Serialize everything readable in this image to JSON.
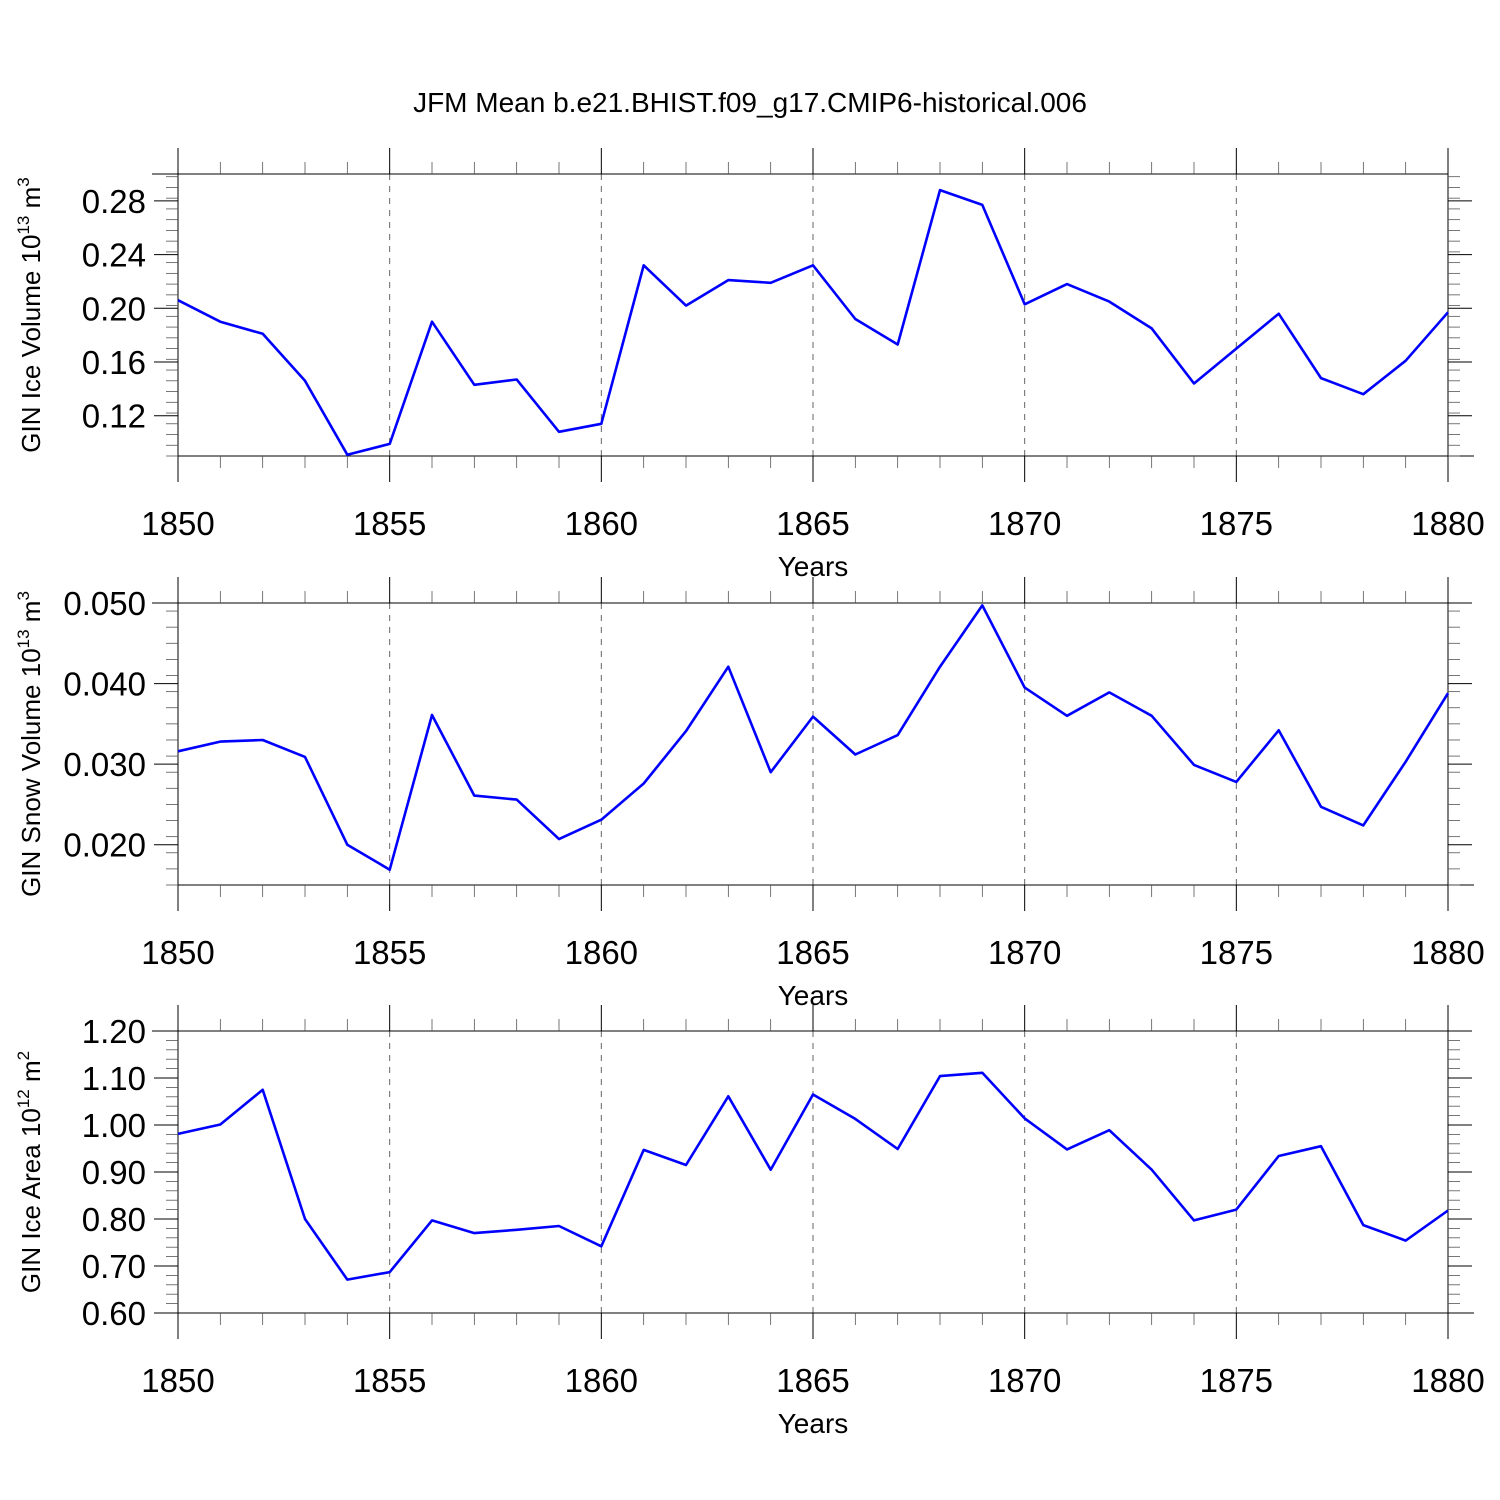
{
  "title": "JFM Mean b.e21.BHIST.f09_g17.CMIP6-historical.006",
  "colors": {
    "series": "#0000ff",
    "axes": "#000000",
    "grid": "#666666"
  },
  "chart_data": [
    {
      "type": "line",
      "ylabel": "GIN Ice Volume 10",
      "ylabel_exp": "13",
      "ylabel_unit": " m",
      "ylabel_unit_exp": "3",
      "xlabel": "Years",
      "xlim": [
        1850,
        1880
      ],
      "ylim": [
        0.09,
        0.3
      ],
      "yticks": [
        0.12,
        0.16,
        0.2,
        0.24,
        0.28
      ],
      "ytick_labels": [
        "0.12",
        "0.16",
        "0.20",
        "0.24",
        "0.28"
      ],
      "xticks": [
        1850,
        1855,
        1860,
        1865,
        1870,
        1875,
        1880
      ],
      "xtick_labels": [
        "1850",
        "1855",
        "1860",
        "1865",
        "1870",
        "1875",
        "1880"
      ],
      "grid": "vertical dashed at major x ticks",
      "x": [
        1850,
        1851,
        1852,
        1853,
        1854,
        1855,
        1856,
        1857,
        1858,
        1859,
        1860,
        1861,
        1862,
        1863,
        1864,
        1865,
        1866,
        1867,
        1868,
        1869,
        1870,
        1871,
        1872,
        1873,
        1874,
        1875,
        1876,
        1877,
        1878,
        1879,
        1880
      ],
      "values": [
        0.206,
        0.19,
        0.181,
        0.146,
        0.091,
        0.099,
        0.19,
        0.143,
        0.147,
        0.108,
        0.114,
        0.232,
        0.202,
        0.221,
        0.219,
        0.232,
        0.192,
        0.173,
        0.288,
        0.277,
        0.203,
        0.218,
        0.205,
        0.185,
        0.144,
        0.17,
        0.196,
        0.148,
        0.136,
        0.161,
        0.197
      ]
    },
    {
      "type": "line",
      "ylabel": "GIN Snow Volume 10",
      "ylabel_exp": "13",
      "ylabel_unit": " m",
      "ylabel_unit_exp": "3",
      "xlabel": "Years",
      "xlim": [
        1850,
        1880
      ],
      "ylim": [
        0.015,
        0.05
      ],
      "yticks": [
        0.02,
        0.03,
        0.04,
        0.05
      ],
      "ytick_labels": [
        "0.020",
        "0.030",
        "0.040",
        "0.050"
      ],
      "xticks": [
        1850,
        1855,
        1860,
        1865,
        1870,
        1875,
        1880
      ],
      "xtick_labels": [
        "1850",
        "1855",
        "1860",
        "1865",
        "1870",
        "1875",
        "1880"
      ],
      "grid": "vertical dashed at major x ticks",
      "x": [
        1850,
        1851,
        1852,
        1853,
        1854,
        1855,
        1856,
        1857,
        1858,
        1859,
        1860,
        1861,
        1862,
        1863,
        1864,
        1865,
        1866,
        1867,
        1868,
        1869,
        1870,
        1871,
        1872,
        1873,
        1874,
        1875,
        1876,
        1877,
        1878,
        1879,
        1880
      ],
      "values": [
        0.0316,
        0.0328,
        0.033,
        0.0309,
        0.02,
        0.0169,
        0.0361,
        0.0261,
        0.0256,
        0.0207,
        0.0231,
        0.0276,
        0.0341,
        0.0421,
        0.029,
        0.0359,
        0.0312,
        0.0336,
        0.0421,
        0.0497,
        0.0395,
        0.036,
        0.0389,
        0.036,
        0.0299,
        0.0278,
        0.0342,
        0.0247,
        0.0224,
        0.0303,
        0.0388
      ]
    },
    {
      "type": "line",
      "ylabel": "GIN Ice Area 10",
      "ylabel_exp": "12",
      "ylabel_unit": " m",
      "ylabel_unit_exp": "2",
      "xlabel": "Years",
      "xlim": [
        1850,
        1880
      ],
      "ylim": [
        0.6,
        1.2
      ],
      "yticks": [
        0.6,
        0.7,
        0.8,
        0.9,
        1.0,
        1.1,
        1.2
      ],
      "ytick_labels": [
        "0.60",
        "0.70",
        "0.80",
        "0.90",
        "1.00",
        "1.10",
        "1.20"
      ],
      "xticks": [
        1850,
        1855,
        1860,
        1865,
        1870,
        1875,
        1880
      ],
      "xtick_labels": [
        "1850",
        "1855",
        "1860",
        "1865",
        "1870",
        "1875",
        "1880"
      ],
      "grid": "vertical dashed at major x ticks",
      "x": [
        1850,
        1851,
        1852,
        1853,
        1854,
        1855,
        1856,
        1857,
        1858,
        1859,
        1860,
        1861,
        1862,
        1863,
        1864,
        1865,
        1866,
        1867,
        1868,
        1869,
        1870,
        1871,
        1872,
        1873,
        1874,
        1875,
        1876,
        1877,
        1878,
        1879,
        1880
      ],
      "values": [
        0.981,
        1.001,
        1.075,
        0.8,
        0.671,
        0.687,
        0.797,
        0.77,
        0.777,
        0.785,
        0.742,
        0.947,
        0.915,
        1.061,
        0.905,
        1.065,
        1.013,
        0.949,
        1.104,
        1.111,
        1.014,
        0.948,
        0.989,
        0.905,
        0.797,
        0.82,
        0.934,
        0.955,
        0.787,
        0.754,
        0.818
      ]
    }
  ]
}
